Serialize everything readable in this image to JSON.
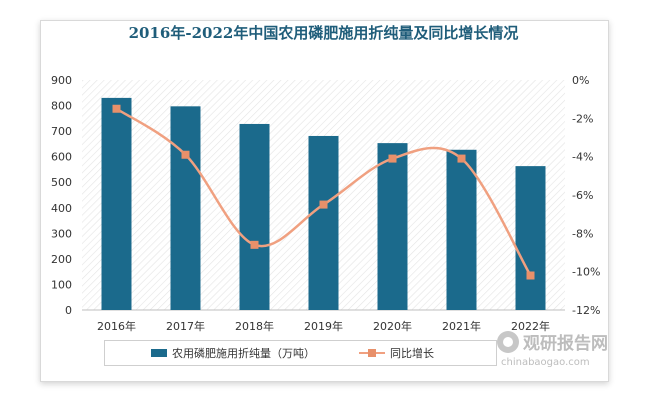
{
  "chart_data": {
    "type": "bar",
    "title": "2016年-2022年中国农用磷肥施用折纯量及同比增长情况",
    "categories": [
      "2016年",
      "2017年",
      "2018年",
      "2019年",
      "2020年",
      "2021年",
      "2022年"
    ],
    "series": [
      {
        "name": "农用磷肥施用折纯量（万吨）",
        "type": "bar",
        "axis": "left",
        "values": [
          830,
          797,
          728,
          681,
          653,
          627,
          563
        ]
      },
      {
        "name": "同比增长",
        "type": "line",
        "axis": "right",
        "smooth": true,
        "values": [
          -1.5,
          -3.9,
          -8.6,
          -6.5,
          -4.1,
          -4.1,
          -10.2
        ]
      }
    ],
    "y_left": {
      "ylim": [
        0,
        900
      ],
      "ticks": [
        "0",
        "100",
        "200",
        "300",
        "400",
        "500",
        "600",
        "700",
        "800",
        "900"
      ]
    },
    "y_right": {
      "ylim": [
        -12,
        0
      ],
      "ticks": [
        "0%",
        "-2%",
        "-4%",
        "-6%",
        "-8%",
        "-10%",
        "-12%"
      ]
    },
    "grid": false,
    "legend_position": "bottom",
    "colors": {
      "bar": "#1b6a8c",
      "line": "#f0a080",
      "marker": "#e8906a",
      "title": "#1f5d7a"
    }
  },
  "watermark": {
    "name": "观研报告网",
    "url": "chinabaogao.com"
  }
}
